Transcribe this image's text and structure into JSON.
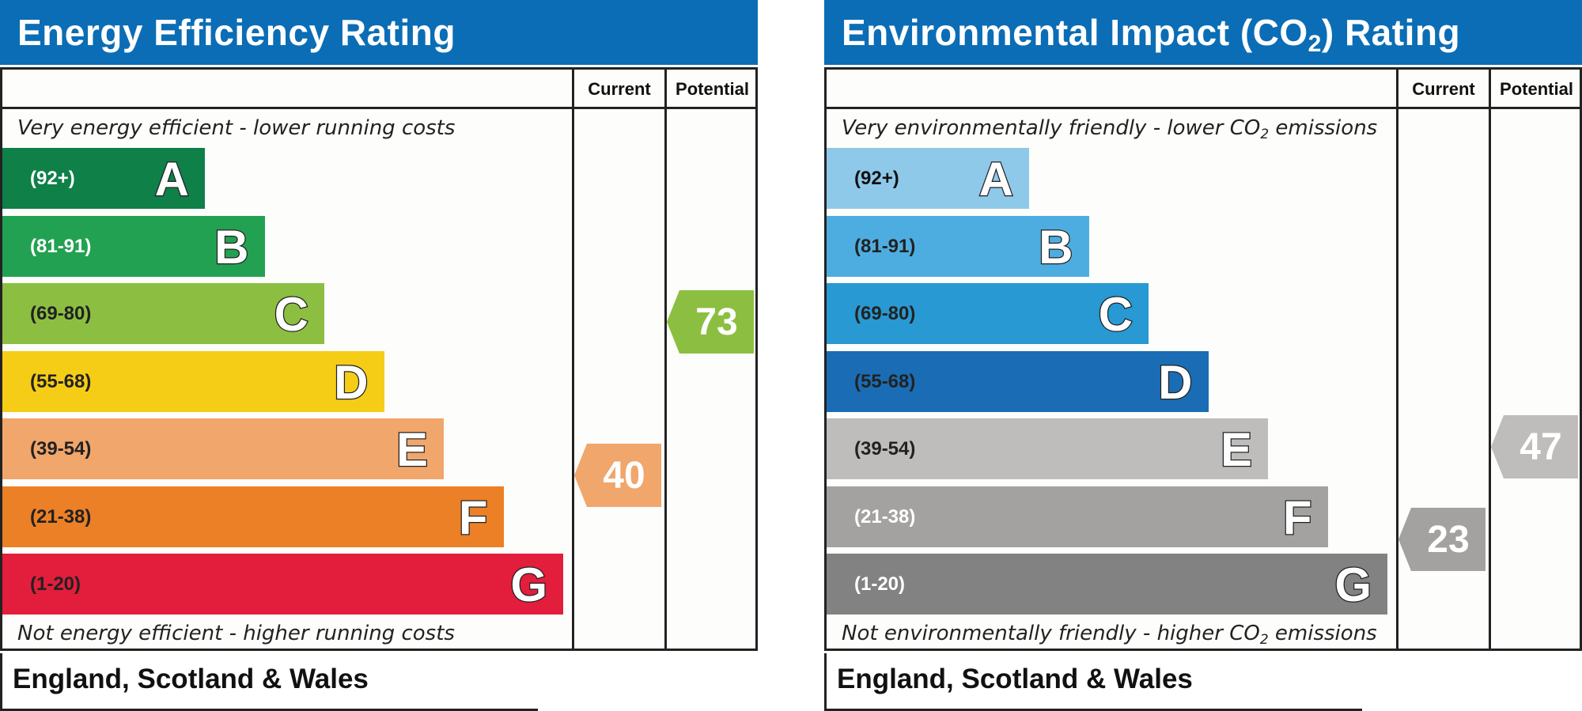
{
  "chart_data": [
    {
      "type": "bar",
      "title": "Energy Efficiency Rating",
      "column_headers": [
        "Current",
        "Potential"
      ],
      "top_caption": "Very energy efficient - lower running costs",
      "bottom_caption": "Not energy efficient - higher running costs",
      "region": "England, Scotland & Wales",
      "bands": [
        {
          "letter": "A",
          "range": "(92+)",
          "min": 92,
          "max": 100,
          "color": "#0e8048",
          "text_color": "#ffffff"
        },
        {
          "letter": "B",
          "range": "(81-91)",
          "min": 81,
          "max": 91,
          "color": "#22a152",
          "text_color": "#ffffff"
        },
        {
          "letter": "C",
          "range": "(69-80)",
          "min": 69,
          "max": 80,
          "color": "#8cbf41",
          "text_color": "#222222"
        },
        {
          "letter": "D",
          "range": "(55-68)",
          "min": 55,
          "max": 68,
          "color": "#f5cd17",
          "text_color": "#222222"
        },
        {
          "letter": "E",
          "range": "(39-54)",
          "min": 39,
          "max": 54,
          "color": "#f1a66c",
          "text_color": "#222222"
        },
        {
          "letter": "F",
          "range": "(21-38)",
          "min": 21,
          "max": 38,
          "color": "#ec8026",
          "text_color": "#222222"
        },
        {
          "letter": "G",
          "range": "(1-20)",
          "min": 1,
          "max": 20,
          "color": "#e31d3c",
          "text_color": "#222222"
        }
      ],
      "current": {
        "value": 40,
        "band": "E",
        "color": "#f1a66c"
      },
      "potential": {
        "value": 73,
        "band": "C",
        "color": "#8cbf41"
      }
    },
    {
      "type": "bar",
      "title": "Environmental Impact (CO",
      "title_subscript": "2",
      "title_suffix": ") Rating",
      "column_headers": [
        "Current",
        "Potential"
      ],
      "top_caption": "Very environmentally friendly - lower CO",
      "top_caption_sub": "2",
      "top_caption_suffix": " emissions",
      "bottom_caption": "Not environmentally friendly - higher CO",
      "bottom_caption_sub": "2",
      "bottom_caption_suffix": " emissions",
      "region": "England, Scotland & Wales",
      "bands": [
        {
          "letter": "A",
          "range": "(92+)",
          "min": 92,
          "max": 100,
          "color": "#8fc9ea",
          "text_color": "#111111"
        },
        {
          "letter": "B",
          "range": "(81-91)",
          "min": 81,
          "max": 91,
          "color": "#4eade0",
          "text_color": "#222222"
        },
        {
          "letter": "C",
          "range": "(69-80)",
          "min": 69,
          "max": 80,
          "color": "#2899d2",
          "text_color": "#222222"
        },
        {
          "letter": "D",
          "range": "(55-68)",
          "min": 55,
          "max": 68,
          "color": "#1a6db5",
          "text_color": "#222222"
        },
        {
          "letter": "E",
          "range": "(39-54)",
          "min": 39,
          "max": 54,
          "color": "#bebdbb",
          "text_color": "#222222"
        },
        {
          "letter": "F",
          "range": "(21-38)",
          "min": 21,
          "max": 38,
          "color": "#a3a2a0",
          "text_color": "#ffffff"
        },
        {
          "letter": "G",
          "range": "(1-20)",
          "min": 1,
          "max": 20,
          "color": "#828282",
          "text_color": "#ffffff"
        }
      ],
      "current": {
        "value": 23,
        "band": "F",
        "color": "#a3a2a0"
      },
      "potential": {
        "value": 47,
        "band": "E",
        "color": "#bebdbb"
      }
    }
  ]
}
